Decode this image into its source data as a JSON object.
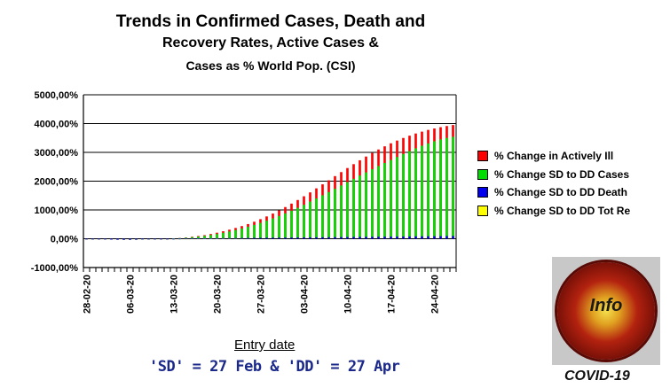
{
  "title_lines": [
    "Trends in Confirmed Cases, Death and",
    "Recovery Rates, Active Cases &",
    "Cases as % World Pop. (CSI)"
  ],
  "footnote": "'SD' = 27 Feb & 'DD' = 27 Apr",
  "logo": {
    "text": "Info",
    "caption": "COVID-19"
  },
  "chart_data": {
    "type": "bar",
    "xlabel": "Entry date",
    "ylabel": "",
    "ylim": [
      -1000,
      5000
    ],
    "yticks": [
      -1000,
      0,
      1000,
      2000,
      3000,
      4000,
      5000
    ],
    "ytick_labels": [
      "-1000,00%",
      "0,00%",
      "1000,00%",
      "2000,00%",
      "3000,00%",
      "4000,00%",
      "5000,00%"
    ],
    "xtick_labels": [
      "28-02-20",
      "06-03-20",
      "13-03-20",
      "20-03-20",
      "27-03-20",
      "03-04-20",
      "10-04-20",
      "17-04-20",
      "24-04-20"
    ],
    "grid": true,
    "legend_position": "right",
    "categories": [
      "28-02",
      "29-02",
      "01-03",
      "02-03",
      "03-03",
      "04-03",
      "05-03",
      "06-03",
      "07-03",
      "08-03",
      "09-03",
      "10-03",
      "11-03",
      "12-03",
      "13-03",
      "14-03",
      "15-03",
      "16-03",
      "17-03",
      "18-03",
      "19-03",
      "20-03",
      "21-03",
      "22-03",
      "23-03",
      "24-03",
      "25-03",
      "26-03",
      "27-03",
      "28-03",
      "29-03",
      "30-03",
      "31-03",
      "01-04",
      "02-04",
      "03-04",
      "04-04",
      "05-04",
      "06-04",
      "07-04",
      "08-04",
      "09-04",
      "10-04",
      "11-04",
      "12-04",
      "13-04",
      "14-04",
      "15-04",
      "16-04",
      "17-04",
      "18-04",
      "19-04",
      "20-04",
      "21-04",
      "22-04",
      "23-04",
      "24-04",
      "25-04",
      "26-04",
      "27-04"
    ],
    "series": [
      {
        "name": "% Change in Actively Ill",
        "color": "#ff0000",
        "values": [
          -5,
          -10,
          -15,
          -20,
          -25,
          -30,
          -35,
          -35,
          -35,
          -30,
          -25,
          -20,
          -10,
          0,
          10,
          25,
          45,
          70,
          95,
          125,
          165,
          210,
          260,
          315,
          375,
          440,
          510,
          590,
          680,
          775,
          875,
          985,
          1100,
          1220,
          1345,
          1475,
          1610,
          1750,
          1890,
          2030,
          2175,
          2315,
          2455,
          2590,
          2725,
          2855,
          2980,
          3100,
          3210,
          3315,
          3410,
          3500,
          3580,
          3655,
          3720,
          3780,
          3830,
          3875,
          3915,
          3950
        ]
      },
      {
        "name": "% Change SD to DD Cases",
        "color": "#00dd00",
        "values": [
          -5,
          -10,
          -15,
          -20,
          -25,
          -30,
          -35,
          -35,
          -35,
          -30,
          -25,
          -20,
          -10,
          0,
          10,
          20,
          35,
          55,
          75,
          100,
          130,
          165,
          205,
          250,
          300,
          355,
          415,
          480,
          550,
          625,
          705,
          790,
          880,
          975,
          1075,
          1180,
          1290,
          1400,
          1510,
          1620,
          1735,
          1850,
          1965,
          2080,
          2195,
          2305,
          2415,
          2525,
          2630,
          2735,
          2840,
          2945,
          3045,
          3140,
          3230,
          3310,
          3385,
          3450,
          3500,
          3540
        ]
      },
      {
        "name": "% Change SD to DD Death",
        "color": "#0000ee",
        "values": [
          -10,
          -15,
          -20,
          -25,
          -30,
          -35,
          -35,
          -35,
          -30,
          -25,
          -20,
          -15,
          -10,
          -5,
          0,
          5,
          8,
          10,
          12,
          14,
          16,
          18,
          20,
          22,
          24,
          26,
          28,
          30,
          32,
          34,
          36,
          38,
          40,
          42,
          44,
          46,
          48,
          50,
          52,
          54,
          56,
          58,
          60,
          62,
          64,
          66,
          68,
          70,
          72,
          74,
          76,
          78,
          80,
          82,
          84,
          86,
          88,
          90,
          92,
          94
        ]
      },
      {
        "name": "% Change SD to DD Tot Re",
        "color": "#ffff00",
        "values": [
          -10,
          -15,
          -20,
          -25,
          -30,
          -35,
          -35,
          -35,
          -30,
          -25,
          -20,
          -15,
          -10,
          -5,
          -2,
          0,
          2,
          4,
          6,
          8,
          10,
          12,
          14,
          16,
          18,
          20,
          22,
          24,
          26,
          28,
          30,
          32,
          34,
          36,
          38,
          40,
          42,
          44,
          46,
          48,
          50,
          52,
          54,
          56,
          58,
          60,
          62,
          64,
          66,
          68,
          70,
          72,
          74,
          76,
          78,
          80,
          82,
          84,
          86,
          88
        ]
      }
    ]
  }
}
